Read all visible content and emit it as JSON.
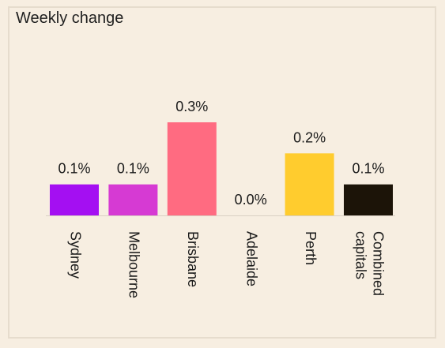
{
  "chart_data": {
    "type": "bar",
    "title": "Weekly change",
    "categories": [
      "Sydney",
      "Melbourne",
      "Brisbane",
      "Adelaide",
      "Perth",
      "Combined capitals"
    ],
    "category_lines": [
      [
        "Sydney"
      ],
      [
        "Melbourne"
      ],
      [
        "Brisbane"
      ],
      [
        "Adelaide"
      ],
      [
        "Perth"
      ],
      [
        "Combined",
        "capitals"
      ]
    ],
    "values": [
      0.1,
      0.1,
      0.3,
      0.0,
      0.2,
      0.1
    ],
    "value_labels": [
      "0.1%",
      "0.1%",
      "0.3%",
      "0.0%",
      "0.2%",
      "0.1%"
    ],
    "colors": [
      "#a40ff2",
      "#d63ad3",
      "#ff6b81",
      "#f7eee1",
      "#ffcc2e",
      "#1c1408"
    ],
    "axis_color": "#d8cfc2",
    "ylim": [
      0,
      0.3
    ],
    "xlabel": "",
    "ylabel": ""
  }
}
